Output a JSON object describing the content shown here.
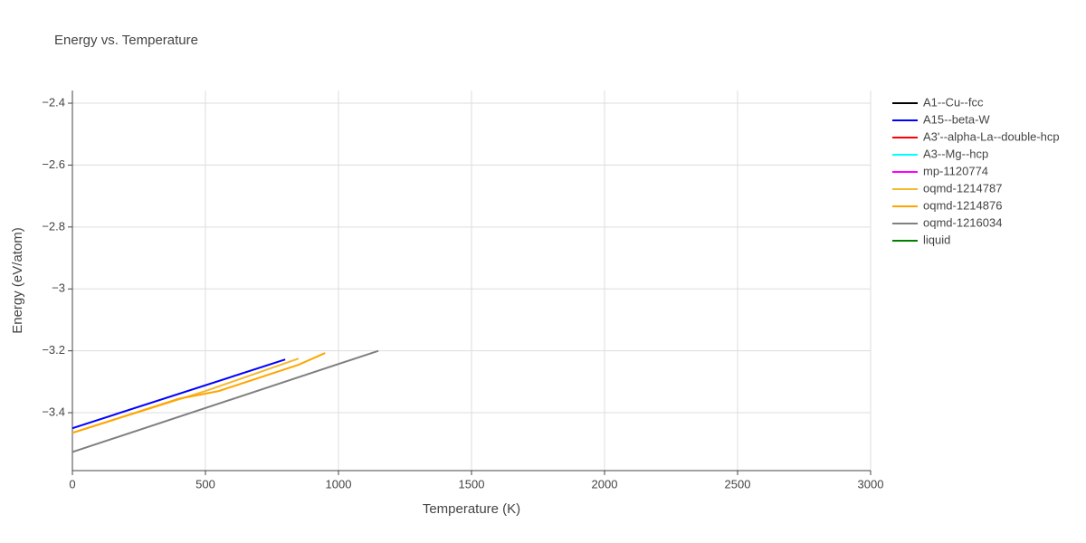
{
  "chart_data": {
    "type": "line",
    "title": "Energy vs. Temperature",
    "x_label": "Temperature (K)",
    "y_label": "Energy (eV/atom)",
    "xlim": [
      0,
      3000
    ],
    "ylim": [
      -3.587,
      -2.359
    ],
    "xticks": [
      0,
      500,
      1000,
      1500,
      2000,
      2500,
      3000
    ],
    "yticks": [
      {
        "value": -2.4,
        "label": "−2.4"
      },
      {
        "value": -2.6,
        "label": "−2.6"
      },
      {
        "value": -2.8,
        "label": "−2.8"
      },
      {
        "value": -3,
        "label": "−3"
      },
      {
        "value": -3.2,
        "label": "−3.2"
      },
      {
        "value": -3.4,
        "label": "−3.4"
      }
    ],
    "grid": true,
    "series": [
      {
        "name": "A1--Cu--fcc",
        "color": "black",
        "x": [],
        "values": []
      },
      {
        "name": "A15--beta-W",
        "color": "blue",
        "x": [
          0,
          800
        ],
        "values": [
          -3.45,
          -3.228
        ]
      },
      {
        "name": "A3'--alpha-La--double-hcp",
        "color": "red",
        "x": [],
        "values": []
      },
      {
        "name": "A3--Mg--hcp",
        "color": "cyan",
        "x": [],
        "values": []
      },
      {
        "name": "mp-1120774",
        "color": "magenta",
        "x": [],
        "values": []
      },
      {
        "name": "oqmd-1214787",
        "color": "#f5b82e",
        "x": [
          0,
          500,
          850
        ],
        "values": [
          -3.465,
          -3.33,
          -3.225
        ]
      },
      {
        "name": "oqmd-1214876",
        "color": "orange",
        "x": [
          0,
          400,
          550,
          850,
          950
        ],
        "values": [
          -3.465,
          -3.355,
          -3.33,
          -3.245,
          -3.207
        ]
      },
      {
        "name": "oqmd-1216034",
        "color": "gray",
        "x": [
          0,
          1150
        ],
        "values": [
          -3.527,
          -3.2
        ]
      },
      {
        "name": "liquid",
        "color": "green",
        "x": [],
        "values": []
      }
    ]
  }
}
